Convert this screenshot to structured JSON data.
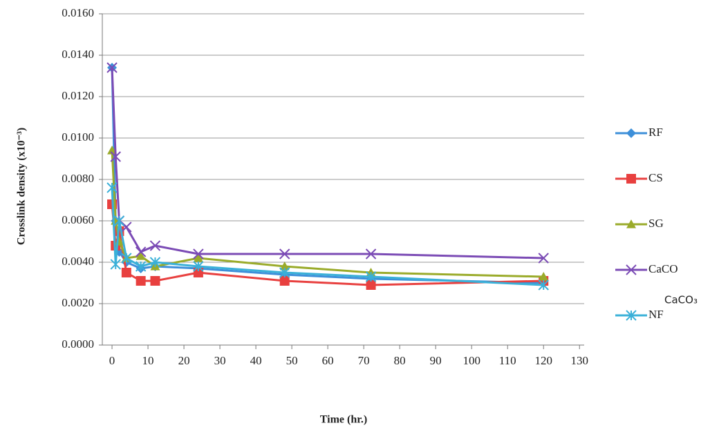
{
  "chart_data": {
    "type": "line",
    "x_label": "Time (hr.)",
    "y_label": "Crosslink density (x10⁻³)",
    "annotation": "CaCO₃",
    "x": [
      0,
      1,
      2,
      4,
      8,
      12,
      24,
      48,
      72,
      120
    ],
    "series": [
      {
        "name": "RF",
        "color": "#3d8fd9",
        "marker": "diamond",
        "values": [
          0.0134,
          0.006,
          0.0045,
          0.004,
          0.0037,
          0.0038,
          0.0037,
          0.0034,
          0.0032,
          0.003
        ]
      },
      {
        "name": "CS",
        "color": "#e8403f",
        "marker": "square",
        "values": [
          0.0068,
          0.0048,
          0.0055,
          0.0035,
          0.0031,
          0.0031,
          0.0035,
          0.0031,
          0.0029,
          0.0031
        ]
      },
      {
        "name": "SG",
        "color": "#9aab2a",
        "marker": "triangle",
        "values": [
          0.0094,
          0.006,
          0.005,
          0.0042,
          0.0043,
          0.0038,
          0.0042,
          0.0038,
          0.0035,
          0.0033
        ]
      },
      {
        "name": "CaCO",
        "color": "#7b4bb5",
        "marker": "x",
        "values": [
          0.0134,
          0.0091,
          0.006,
          0.0057,
          0.0045,
          0.0048,
          0.0044,
          0.0044,
          0.0044,
          0.0042
        ]
      },
      {
        "name": "NF",
        "color": "#3ab0d8",
        "marker": "asterisk",
        "values": [
          0.0076,
          0.0039,
          0.006,
          0.0042,
          0.0038,
          0.004,
          0.0038,
          0.0035,
          0.0033,
          0.0029
        ]
      }
    ],
    "xlim": [
      -2.7,
      131.3
    ],
    "xticks": [
      0,
      10,
      20,
      30,
      40,
      50,
      60,
      70,
      80,
      90,
      100,
      110,
      120,
      130
    ],
    "ylim": [
      0,
      0.016
    ],
    "yticks": [
      {
        "value": 0,
        "label": "0.0000"
      },
      {
        "value": 0.002,
        "label": "0.0020"
      },
      {
        "value": 0.004,
        "label": "0.0040"
      },
      {
        "value": 0.006,
        "label": "0.0060"
      },
      {
        "value": 0.008,
        "label": "0.0080"
      },
      {
        "value": 0.01,
        "label": "0.0100"
      },
      {
        "value": 0.012,
        "label": "0.0120"
      },
      {
        "value": 0.014,
        "label": "0.0140"
      },
      {
        "value": 0.016,
        "label": "0.0160"
      }
    ],
    "grid": true
  }
}
